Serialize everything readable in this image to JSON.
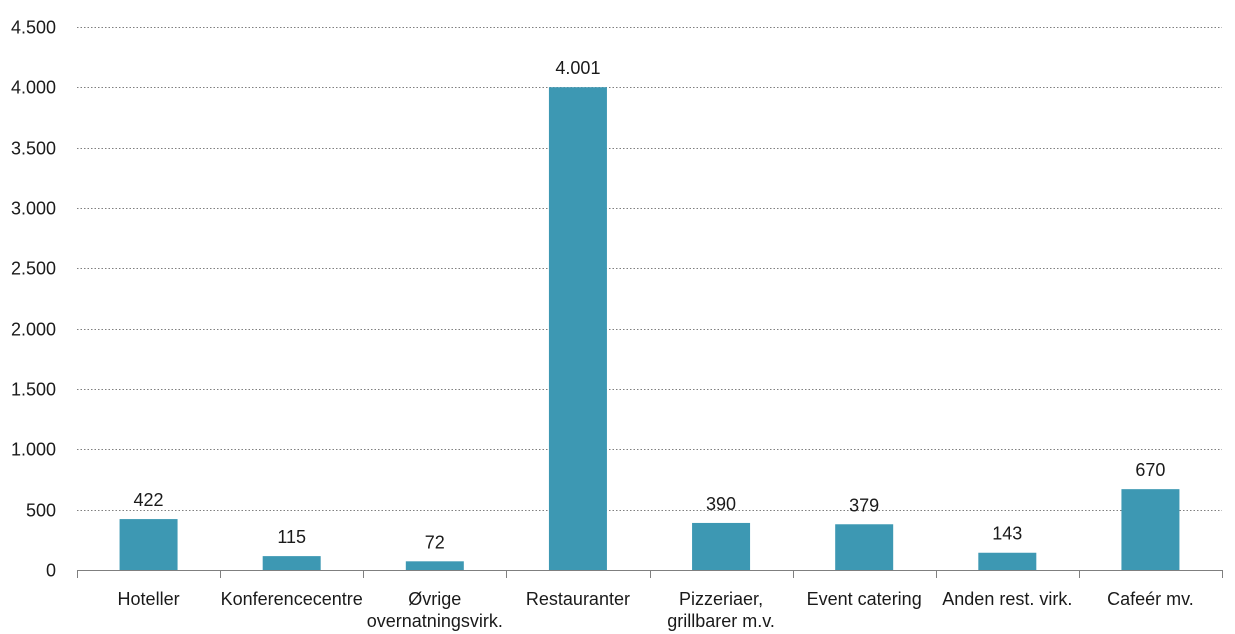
{
  "chart_data": {
    "type": "bar",
    "categories": [
      [
        "Hoteller"
      ],
      [
        "Konferencecentre"
      ],
      [
        "Øvrige",
        "overnatningsvirk."
      ],
      [
        "Restauranter"
      ],
      [
        "Pizzeriaer,",
        "grillbarer m.v."
      ],
      [
        "Event catering"
      ],
      [
        "Anden rest. virk."
      ],
      [
        "Cafeér mv."
      ]
    ],
    "values": [
      422,
      115,
      72,
      4001,
      390,
      379,
      143,
      670
    ],
    "value_labels": [
      "422",
      "115",
      "72",
      "4.001",
      "390",
      "379",
      "143",
      "670"
    ],
    "ylim": [
      0,
      4500
    ],
    "yticks": [
      0,
      500,
      1000,
      1500,
      2000,
      2500,
      3000,
      3500,
      4000,
      4500
    ],
    "ytick_labels": [
      "0",
      "500",
      "1.000",
      "1.500",
      "2.000",
      "2.500",
      "3.000",
      "3.500",
      "4.000",
      "4.500"
    ],
    "grid": true,
    "legend": "none",
    "bar_color": "#3d98b3"
  }
}
